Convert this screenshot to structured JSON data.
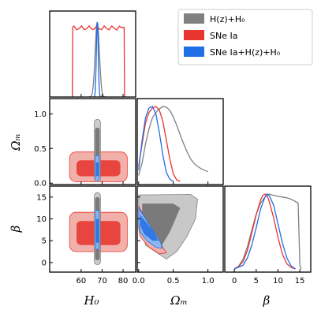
{
  "chart_data": {
    "type": "corner",
    "parameters": [
      "H0",
      "Omega_m",
      "beta"
    ],
    "axis_labels": {
      "H0": "H₀",
      "Omega_m": "Ωₘ",
      "beta": "β"
    },
    "ranges": {
      "H0": [
        45,
        86
      ],
      "Omega_m": [
        -0.02,
        1.22
      ],
      "beta": [
        -2.2,
        17.5
      ]
    },
    "ticks": {
      "H0": {
        "values": [
          60,
          70,
          80
        ],
        "labels": [
          "60",
          "70",
          "80"
        ]
      },
      "Omega_m": {
        "values": [
          0.0,
          0.5,
          1.0
        ],
        "labels": [
          "0.0",
          "0.5",
          "1.0"
        ],
        "y_labels": [
          "0.0",
          "0.5",
          "1.0"
        ]
      },
      "beta": {
        "values": [
          0,
          5,
          10,
          15
        ],
        "labels": [
          "0",
          "5",
          "10",
          "15"
        ]
      }
    },
    "legend": {
      "placement": "top-right",
      "entries": [
        {
          "label": "H(z)+H₀",
          "color": "#808080"
        },
        {
          "label": "SNe Ia",
          "color": "#e8352f"
        },
        {
          "label": "SNe Ia+H(z)+H₀",
          "color": "#1f6fe5"
        }
      ]
    },
    "series": [
      {
        "label": "H(z)+H₀",
        "color": "#808080",
        "light": "#c8c8c8",
        "dark": "#7a7a7a",
        "h0": {
          "mean": 67.7,
          "sd": 1.0
        },
        "om": [
          [
            0.0,
            0.08
          ],
          [
            0.05,
            0.25
          ],
          [
            0.1,
            0.5
          ],
          [
            0.15,
            0.7
          ],
          [
            0.2,
            0.85
          ],
          [
            0.25,
            0.92
          ],
          [
            0.3,
            0.97
          ],
          [
            0.35,
            1.0
          ],
          [
            0.4,
            0.99
          ],
          [
            0.45,
            0.95
          ],
          [
            0.5,
            0.86
          ],
          [
            0.55,
            0.75
          ],
          [
            0.6,
            0.62
          ],
          [
            0.65,
            0.5
          ],
          [
            0.7,
            0.39
          ],
          [
            0.75,
            0.3
          ],
          [
            0.8,
            0.24
          ],
          [
            0.85,
            0.2
          ],
          [
            0.9,
            0.17
          ],
          [
            0.95,
            0.15
          ],
          [
            1.0,
            0.13
          ]
        ],
        "beta": [
          [
            0.0,
            0.0
          ],
          [
            1.0,
            0.04
          ],
          [
            2.0,
            0.13
          ],
          [
            3.0,
            0.3
          ],
          [
            4.0,
            0.52
          ],
          [
            5.0,
            0.73
          ],
          [
            6.0,
            0.88
          ],
          [
            7.0,
            0.96
          ],
          [
            8.0,
            1.0
          ],
          [
            9.0,
            0.98
          ],
          [
            10.0,
            0.97
          ],
          [
            11.0,
            0.96
          ],
          [
            12.0,
            0.95
          ],
          [
            13.0,
            0.93
          ],
          [
            14.0,
            0.9
          ],
          [
            14.6,
            0.88
          ],
          [
            15.0,
            0.05
          ],
          [
            15.3,
            0.0
          ]
        ]
      },
      {
        "label": "SNe Ia",
        "color": "#e8352f",
        "light": "#f2b0ab",
        "dark": "#e8453f",
        "h0": {
          "flat": [
            56,
            80.5
          ]
        },
        "om": [
          [
            0.0,
            0.2
          ],
          [
            0.05,
            0.5
          ],
          [
            0.1,
            0.78
          ],
          [
            0.15,
            0.92
          ],
          [
            0.2,
            0.98
          ],
          [
            0.25,
            1.0
          ],
          [
            0.3,
            0.95
          ],
          [
            0.35,
            0.8
          ],
          [
            0.4,
            0.55
          ],
          [
            0.45,
            0.3
          ],
          [
            0.5,
            0.1
          ],
          [
            0.55,
            0.02
          ],
          [
            0.6,
            0.0
          ]
        ],
        "beta": [
          [
            0.0,
            0.0
          ],
          [
            1.0,
            0.03
          ],
          [
            2.0,
            0.1
          ],
          [
            3.0,
            0.25
          ],
          [
            4.0,
            0.48
          ],
          [
            5.0,
            0.72
          ],
          [
            6.0,
            0.92
          ],
          [
            6.5,
            0.98
          ],
          [
            7.0,
            1.0
          ],
          [
            7.5,
            0.98
          ],
          [
            8.0,
            0.9
          ],
          [
            9.0,
            0.68
          ],
          [
            10.0,
            0.42
          ],
          [
            11.0,
            0.2
          ],
          [
            12.0,
            0.07
          ],
          [
            13.0,
            0.02
          ],
          [
            14.0,
            0.0
          ]
        ]
      },
      {
        "label": "SNe Ia+H(z)+H₀",
        "color": "#1f6fe5",
        "light": "#8db6f0",
        "dark": "#2f78e6",
        "h0": {
          "mean": 67.7,
          "sd": 0.45
        },
        "om": [
          [
            0.0,
            0.15
          ],
          [
            0.05,
            0.55
          ],
          [
            0.1,
            0.85
          ],
          [
            0.15,
            0.98
          ],
          [
            0.2,
            1.0
          ],
          [
            0.25,
            0.9
          ],
          [
            0.3,
            0.65
          ],
          [
            0.35,
            0.35
          ],
          [
            0.4,
            0.12
          ],
          [
            0.45,
            0.03
          ],
          [
            0.5,
            0.0
          ]
        ],
        "beta": [
          [
            0.0,
            0.0
          ],
          [
            2.0,
            0.05
          ],
          [
            3.0,
            0.15
          ],
          [
            4.0,
            0.32
          ],
          [
            5.0,
            0.55
          ],
          [
            6.0,
            0.8
          ],
          [
            7.0,
            0.96
          ],
          [
            7.5,
            1.0
          ],
          [
            8.0,
            0.98
          ],
          [
            9.0,
            0.85
          ],
          [
            10.0,
            0.6
          ],
          [
            11.0,
            0.35
          ],
          [
            12.0,
            0.15
          ],
          [
            13.0,
            0.04
          ],
          [
            14.0,
            0.0
          ]
        ]
      }
    ],
    "om_beta_contours": {
      "H(z)+H₀": {
        "outer": [
          [
            0.0,
            15.5
          ],
          [
            0.75,
            15.6
          ],
          [
            0.85,
            14.5
          ],
          [
            0.82,
            10.0
          ],
          [
            0.7,
            6.0
          ],
          [
            0.55,
            2.5
          ],
          [
            0.4,
            0.8
          ],
          [
            0.1,
            4.0
          ],
          [
            0.0,
            10.0
          ]
        ],
        "inner": [
          [
            0.05,
            13.5
          ],
          [
            0.5,
            13.5
          ],
          [
            0.6,
            12.5
          ],
          [
            0.45,
            7.0
          ],
          [
            0.3,
            3.0
          ],
          [
            0.15,
            5.0
          ],
          [
            0.05,
            9.0
          ]
        ]
      },
      "SNe Ia": {
        "outer": [
          [
            0.0,
            13.0
          ],
          [
            0.08,
            10.5
          ],
          [
            0.2,
            7.0
          ],
          [
            0.35,
            3.5
          ],
          [
            0.4,
            2.2
          ],
          [
            0.3,
            2.0
          ],
          [
            0.15,
            3.5
          ],
          [
            0.02,
            6.0
          ],
          [
            0.0,
            8.0
          ]
        ],
        "inner": [
          [
            0.02,
            11.5
          ],
          [
            0.12,
            9.0
          ],
          [
            0.25,
            6.0
          ],
          [
            0.33,
            4.0
          ],
          [
            0.2,
            4.2
          ],
          [
            0.06,
            6.5
          ],
          [
            0.01,
            9.0
          ]
        ]
      },
      "SNe Ia+H(z)+H₀": {
        "outer": [
          [
            0.0,
            12.5
          ],
          [
            0.08,
            10.5
          ],
          [
            0.2,
            7.5
          ],
          [
            0.32,
            4.5
          ],
          [
            0.34,
            3.2
          ],
          [
            0.25,
            3.5
          ],
          [
            0.12,
            5.0
          ],
          [
            0.02,
            7.0
          ],
          [
            0.0,
            9.0
          ]
        ],
        "inner": [
          [
            0.02,
            11.0
          ],
          [
            0.12,
            9.0
          ],
          [
            0.22,
            7.0
          ],
          [
            0.28,
            5.0
          ],
          [
            0.2,
            5.0
          ],
          [
            0.08,
            6.5
          ],
          [
            0.02,
            8.5
          ]
        ]
      }
    },
    "h0_2d_extents": {
      "H(z)+H₀": {
        "h0": [
          66.3,
          69.2
        ],
        "om_outer": [
          0.02,
          0.92
        ],
        "om_inner": [
          0.08,
          0.8
        ],
        "beta_outer": [
          -0.5,
          16.0
        ],
        "beta_inner": [
          0.5,
          15.0
        ]
      },
      "SNe Ia": {
        "h0": [
          54.5,
          82.0
        ],
        "om_outer": [
          0.02,
          0.45
        ],
        "om_inner": [
          0.1,
          0.33
        ],
        "beta_outer": [
          2.5,
          11.5
        ],
        "beta_inner": [
          4.0,
          9.5
        ]
      },
      "SNe Ia+H(z)+H₀": {
        "h0": [
          66.8,
          68.6
        ],
        "om_outer": [
          0.04,
          0.4
        ],
        "om_inner": [
          0.1,
          0.3
        ],
        "beta_outer": [
          3.0,
          12.0
        ],
        "beta_inner": [
          4.5,
          10.0
        ]
      }
    }
  }
}
